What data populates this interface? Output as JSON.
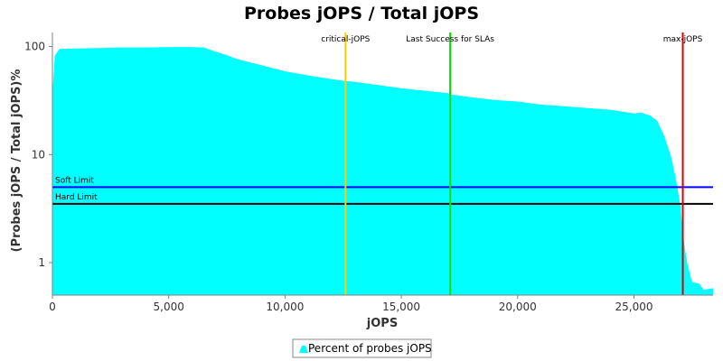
{
  "chart_data": {
    "type": "area",
    "title": "Probes jOPS / Total jOPS",
    "xlabel": "jOPS",
    "ylabel": "(Probes jOPS / Total jOPS)%",
    "xlim": [
      0,
      28400
    ],
    "ylim": [
      0.5,
      135
    ],
    "y_scale": "log",
    "x_ticks": [
      0,
      5000,
      10000,
      15000,
      20000,
      25000
    ],
    "x_tick_labels": [
      "0",
      "5,000",
      "10,000",
      "15,000",
      "20,000",
      "25,000"
    ],
    "y_ticks": [
      1,
      10,
      100
    ],
    "y_tick_labels": [
      "1",
      "10",
      "100"
    ],
    "grid": false,
    "legend_position": "bottom-center",
    "series": [
      {
        "name": "Percent of probes jOPS",
        "color": "#00FFFF",
        "x": [
          0,
          100,
          300,
          1000,
          2000,
          3000,
          4000,
          5000,
          6000,
          6500,
          7000,
          7500,
          8000,
          9000,
          10000,
          11000,
          12000,
          12600,
          13000,
          14000,
          15000,
          16000,
          17000,
          17100,
          18000,
          19000,
          20000,
          21000,
          22000,
          23000,
          24000,
          25000,
          25300,
          25700,
          26000,
          26300,
          26600,
          26800,
          27000,
          27100,
          27200,
          27300,
          27500,
          27800,
          28000,
          28400
        ],
        "y": [
          36,
          82,
          95,
          96,
          97,
          98,
          98,
          99,
          99,
          98,
          90,
          83,
          76,
          67,
          59,
          54,
          50,
          48,
          47,
          44,
          41,
          39,
          37,
          36,
          34,
          32,
          31,
          29,
          28,
          27,
          26,
          24,
          24.5,
          23,
          20.5,
          15,
          9.5,
          6,
          3.3,
          1.9,
          1.3,
          0.97,
          0.66,
          0.64,
          0.56,
          0.58
        ]
      }
    ],
    "markers": [
      {
        "label": "critical-jOPS",
        "x": 12600,
        "color": "#FFCC00"
      },
      {
        "label": "Last Success for SLAs",
        "x": 17100,
        "color": "#00DD00"
      },
      {
        "label": "max-jOPS",
        "x": 27100,
        "color": "#DD0000"
      }
    ],
    "limits": [
      {
        "label": "Soft Limit",
        "y": 5,
        "color": "#0000FF"
      },
      {
        "label": "Hard Limit",
        "y": 3.5,
        "color": "#000000"
      }
    ]
  }
}
